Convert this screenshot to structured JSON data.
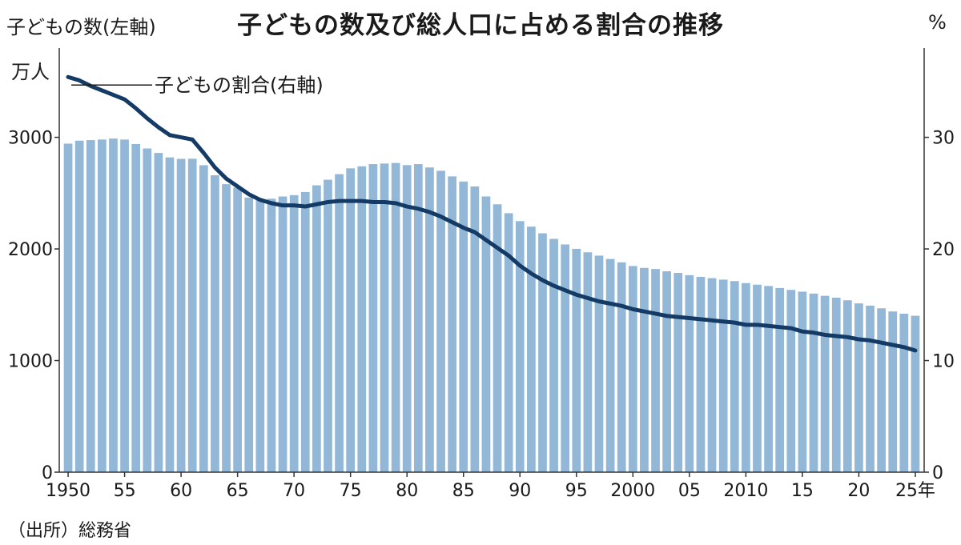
{
  "title": "子どもの数及び総人口に占める割合の推移",
  "source": "（出所）総務省",
  "chart_data": {
    "type": "bar",
    "left_axis": {
      "label": "子どもの数(左軸)",
      "unit": "万人",
      "range": [
        0,
        3800
      ],
      "ticks": [
        "0",
        "1000",
        "2000",
        "3000"
      ],
      "tick_values": [
        0,
        1000,
        2000,
        3000
      ]
    },
    "right_axis": {
      "unit": "%",
      "range": [
        0,
        38
      ],
      "ticks": [
        "0",
        "10",
        "20",
        "30"
      ],
      "tick_values": [
        0,
        10,
        20,
        30
      ]
    },
    "x_ticks": [
      "1950",
      "55",
      "60",
      "65",
      "70",
      "75",
      "80",
      "85",
      "90",
      "95",
      "2000",
      "05",
      "2010",
      "15",
      "20",
      "25年"
    ],
    "x_tick_years": [
      1950,
      1955,
      1960,
      1965,
      1970,
      1975,
      1980,
      1985,
      1990,
      1995,
      2000,
      2005,
      2010,
      2015,
      2020,
      2025
    ],
    "bar_color": "#93b7d6",
    "line_color": "#143a66",
    "years": [
      1950,
      1951,
      1952,
      1953,
      1954,
      1955,
      1956,
      1957,
      1958,
      1959,
      1960,
      1961,
      1962,
      1963,
      1964,
      1965,
      1966,
      1967,
      1968,
      1969,
      1970,
      1971,
      1972,
      1973,
      1974,
      1975,
      1976,
      1977,
      1978,
      1979,
      1980,
      1981,
      1982,
      1983,
      1984,
      1985,
      1986,
      1987,
      1988,
      1989,
      1990,
      1991,
      1992,
      1993,
      1994,
      1995,
      1996,
      1997,
      1998,
      1999,
      2000,
      2001,
      2002,
      2003,
      2004,
      2005,
      2006,
      2007,
      2008,
      2009,
      2010,
      2011,
      2012,
      2013,
      2014,
      2015,
      2016,
      2017,
      2018,
      2019,
      2020,
      2021,
      2022,
      2023,
      2024,
      2025
    ],
    "series": [
      {
        "name": "子どもの数(左軸)",
        "type": "bar",
        "axis": "left",
        "values": [
          2943,
          2970,
          2975,
          2980,
          2989,
          2980,
          2940,
          2900,
          2860,
          2820,
          2807,
          2808,
          2750,
          2660,
          2580,
          2550,
          2460,
          2440,
          2450,
          2470,
          2482,
          2510,
          2570,
          2620,
          2670,
          2722,
          2740,
          2760,
          2765,
          2770,
          2751,
          2760,
          2730,
          2700,
          2650,
          2604,
          2560,
          2470,
          2400,
          2320,
          2249,
          2200,
          2140,
          2090,
          2040,
          2001,
          1970,
          1940,
          1910,
          1880,
          1847,
          1830,
          1820,
          1800,
          1785,
          1765,
          1750,
          1738,
          1725,
          1712,
          1694,
          1680,
          1668,
          1650,
          1633,
          1617,
          1600,
          1580,
          1563,
          1540,
          1512,
          1492,
          1468,
          1440,
          1420,
          1401
        ]
      },
      {
        "name": "子どもの割合(右軸)",
        "type": "line",
        "axis": "right",
        "values": [
          35.4,
          35.1,
          34.6,
          34.2,
          33.8,
          33.4,
          32.6,
          31.7,
          30.9,
          30.2,
          30.0,
          29.8,
          28.6,
          27.3,
          26.3,
          25.6,
          24.9,
          24.4,
          24.1,
          23.9,
          23.9,
          23.8,
          24.0,
          24.2,
          24.3,
          24.3,
          24.3,
          24.2,
          24.2,
          24.1,
          23.8,
          23.6,
          23.3,
          22.9,
          22.4,
          21.9,
          21.5,
          20.8,
          20.1,
          19.4,
          18.5,
          17.8,
          17.2,
          16.7,
          16.3,
          15.9,
          15.6,
          15.3,
          15.1,
          14.9,
          14.6,
          14.4,
          14.2,
          14.0,
          13.9,
          13.8,
          13.7,
          13.6,
          13.5,
          13.4,
          13.2,
          13.2,
          13.1,
          13.0,
          12.9,
          12.6,
          12.5,
          12.3,
          12.2,
          12.1,
          11.9,
          11.8,
          11.6,
          11.4,
          11.2,
          10.9
        ]
      }
    ],
    "annotation": "子どもの割合(右軸)"
  }
}
